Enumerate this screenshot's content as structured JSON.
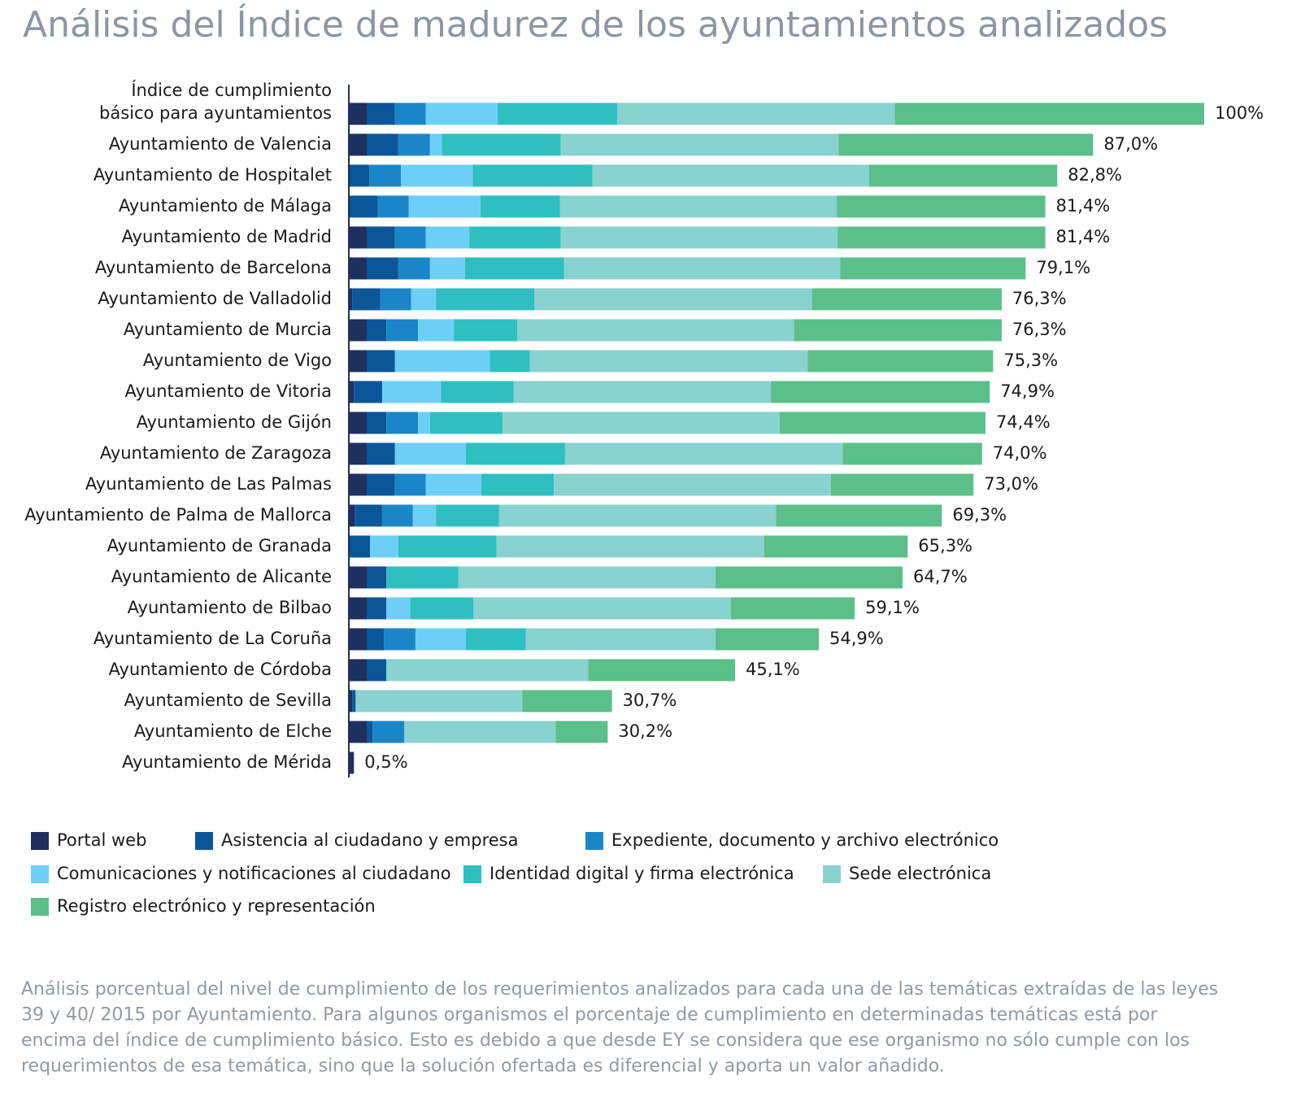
{
  "chart_data": {
    "type": "stacked-barh",
    "title": "Análisis del Índice de madurez de los ayuntamientos analizados",
    "categories": [
      "Índice de cumplimiento\nbásico para ayuntamientos",
      "Ayuntamiento de Valencia",
      "Ayuntamiento de Hospitalet",
      "Ayuntamiento de Málaga",
      "Ayuntamiento de Madrid",
      "Ayuntamiento de Barcelona",
      "Ayuntamiento de Valladolid",
      "Ayuntamiento de Murcia",
      "Ayuntamiento de Vigo",
      "Ayuntamiento de Vitoria",
      "Ayuntamiento de Gijón",
      "Ayuntamiento de Zaragoza",
      "Ayuntamiento de Las Palmas",
      "Ayuntamiento de Palma de Mallorca",
      "Ayuntamiento de Granada",
      "Ayuntamiento de Alicante",
      "Ayuntamiento de Bilbao",
      "Ayuntamiento de La Coruña",
      "Ayuntamiento de Córdoba",
      "Ayuntamiento de Sevilla",
      "Ayuntamiento de Elche",
      "Ayuntamiento de Mérida"
    ],
    "series": [
      {
        "name": "Portal web",
        "color": "#1f2f5e",
        "values": [
          2.0,
          2.0,
          0,
          0,
          2.0,
          2.0,
          0.3,
          2.0,
          2.0,
          0.5,
          2.0,
          2.0,
          2.0,
          0.6,
          0,
          2.0,
          2.0,
          2.0,
          2.0,
          0.3,
          2.0,
          0.5
        ]
      },
      {
        "name": "Asistencia al ciudadano y empresa",
        "color": "#0b5699",
        "values": [
          3.3,
          3.7,
          2.3,
          3.3,
          3.3,
          3.7,
          3.3,
          2.3,
          3.3,
          3.3,
          2.3,
          3.3,
          3.3,
          3.2,
          2.4,
          2.3,
          2.3,
          2.0,
          2.3,
          0.4,
          0.7,
          0
        ]
      },
      {
        "name": "Expediente, documento y archivo electrónico",
        "color": "#1a86c8",
        "values": [
          3.6,
          3.7,
          3.7,
          3.6,
          3.6,
          3.7,
          3.6,
          3.7,
          0,
          0,
          3.7,
          0,
          3.6,
          3.6,
          0,
          0,
          0,
          3.7,
          0,
          0,
          3.7,
          0
        ]
      },
      {
        "name": "Comunicaciones y notificaciones al ciudadano",
        "color": "#6dcff6",
        "values": [
          8.4,
          1.4,
          8.4,
          8.4,
          5.1,
          4.1,
          2.9,
          4.2,
          11.1,
          6.9,
          1.4,
          8.3,
          6.5,
          2.7,
          3.3,
          0,
          2.8,
          5.9,
          0,
          0,
          0,
          0
        ]
      },
      {
        "name": "Identidad digital y firma electrónica",
        "color": "#2fbfc0",
        "values": [
          14.0,
          13.9,
          14.0,
          9.3,
          10.7,
          11.6,
          11.5,
          7.4,
          4.7,
          8.5,
          8.5,
          11.6,
          8.5,
          7.4,
          11.5,
          8.4,
          7.4,
          7.0,
          0,
          0,
          0,
          0
        ]
      },
      {
        "name": "Sede electrónica",
        "color": "#88d2d0",
        "values": [
          32.5,
          32.5,
          32.4,
          32.4,
          32.4,
          32.3,
          32.5,
          32.4,
          32.5,
          30.1,
          32.4,
          32.5,
          32.4,
          32.4,
          31.3,
          30.1,
          30.1,
          22.2,
          23.6,
          19.5,
          17.7,
          0
        ]
      },
      {
        "name": "Registro electrónico y representación",
        "color": "#5bbf8a",
        "values": [
          36.2,
          29.8,
          22.0,
          24.4,
          24.3,
          21.7,
          22.2,
          24.3,
          21.7,
          25.6,
          24.1,
          16.3,
          16.7,
          19.4,
          16.8,
          21.9,
          14.5,
          12.1,
          17.2,
          10.5,
          6.1,
          0
        ]
      }
    ],
    "totals": [
      100,
      87.0,
      82.8,
      81.4,
      81.4,
      79.1,
      76.3,
      76.3,
      75.3,
      74.9,
      74.4,
      74.0,
      73.0,
      69.3,
      65.3,
      64.7,
      59.1,
      54.9,
      45.1,
      30.7,
      30.2,
      0.5
    ],
    "total_labels": [
      "100%",
      "87,0%",
      "82,8%",
      "81,4%",
      "81,4%",
      "79,1%",
      "76,3%",
      "76,3%",
      "75,3%",
      "74,9%",
      "74,4%",
      "74,0%",
      "73,0%",
      "69,3%",
      "65,3%",
      "64,7%",
      "59,1%",
      "54,9%",
      "45,1%",
      "30,7%",
      "30,2%",
      "0,5%"
    ],
    "xlim": [
      0,
      100
    ],
    "note": [
      "Análisis porcentual del nivel de cumplimiento de los requerimientos analizados para cada una de las temáticas extraídas de las leyes",
      "39 y 40/ 2015 por Ayuntamiento. Para algunos organismos el porcentaje de cumplimiento en determinadas temáticas está por",
      "encima del índice de cumplimiento básico. Esto es debido a que desde EY se considera que ese organismo no sólo cumple con los",
      "requerimientos de esa temática, sino que la solución ofertada es diferencial y aporta un valor añadido."
    ]
  }
}
